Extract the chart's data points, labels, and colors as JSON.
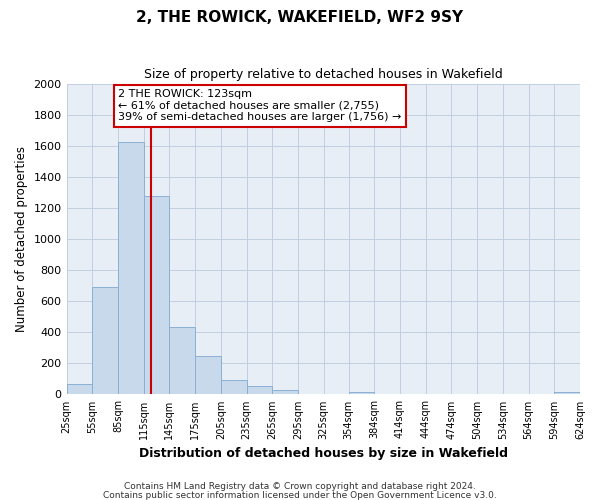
{
  "title": "2, THE ROWICK, WAKEFIELD, WF2 9SY",
  "subtitle": "Size of property relative to detached houses in Wakefield",
  "xlabel": "Distribution of detached houses by size in Wakefield",
  "ylabel": "Number of detached properties",
  "bar_color": "#c8d9ec",
  "bar_edge_color": "#8ab0d4",
  "background_color": "#ffffff",
  "plot_bg_color": "#e8eef5",
  "grid_color": "#c0cfe0",
  "bin_edges": [
    25,
    55,
    85,
    115,
    145,
    175,
    205,
    235,
    265,
    295,
    325,
    354,
    384,
    414,
    444,
    474,
    504,
    534,
    564,
    594,
    624
  ],
  "bin_labels": [
    "25sqm",
    "55sqm",
    "85sqm",
    "115sqm",
    "145sqm",
    "175sqm",
    "205sqm",
    "235sqm",
    "265sqm",
    "295sqm",
    "325sqm",
    "354sqm",
    "384sqm",
    "414sqm",
    "444sqm",
    "474sqm",
    "504sqm",
    "534sqm",
    "564sqm",
    "594sqm",
    "624sqm"
  ],
  "counts": [
    65,
    690,
    1630,
    1280,
    435,
    250,
    90,
    55,
    30,
    0,
    0,
    15,
    0,
    0,
    0,
    0,
    0,
    0,
    0,
    15
  ],
  "property_sqm": 123,
  "vline_color": "#cc0000",
  "annotation_line1": "2 THE ROWICK: 123sqm",
  "annotation_line2": "← 61% of detached houses are smaller (2,755)",
  "annotation_line3": "39% of semi-detached houses are larger (1,756) →",
  "annotation_box_color": "#ffffff",
  "annotation_box_edge": "#cc0000",
  "ylim": [
    0,
    2000
  ],
  "yticks": [
    0,
    200,
    400,
    600,
    800,
    1000,
    1200,
    1400,
    1600,
    1800,
    2000
  ],
  "footer1": "Contains HM Land Registry data © Crown copyright and database right 2024.",
  "footer2": "Contains public sector information licensed under the Open Government Licence v3.0."
}
